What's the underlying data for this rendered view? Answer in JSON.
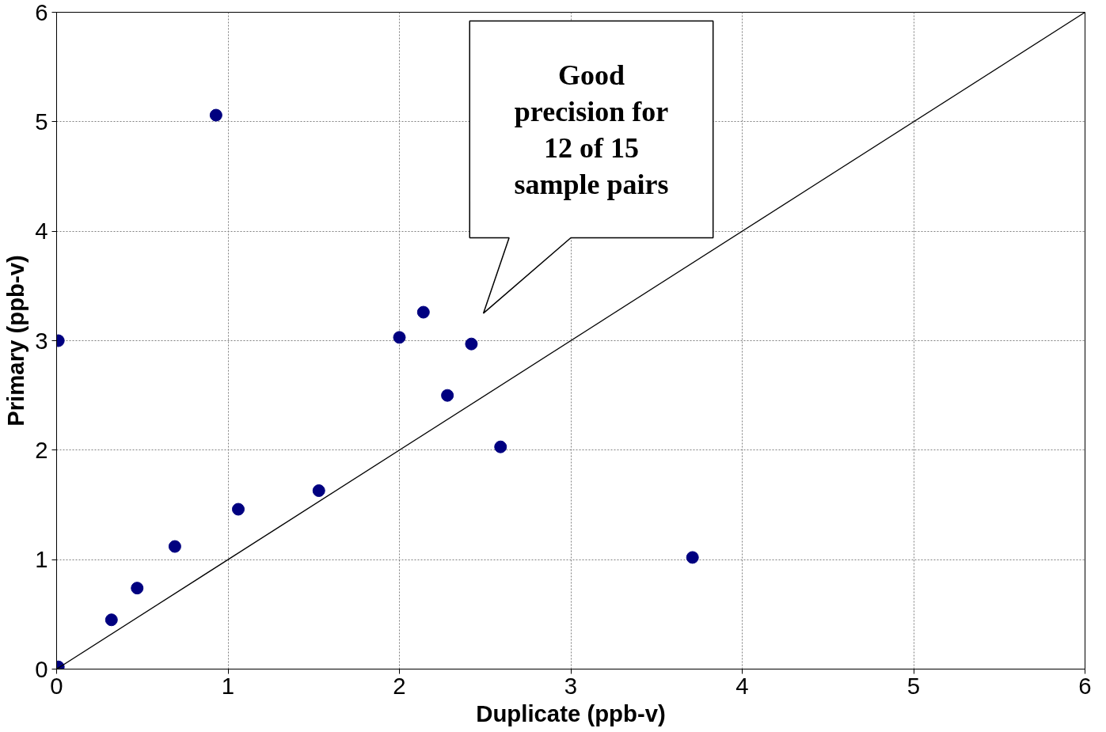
{
  "chart_data": {
    "type": "scatter",
    "xlabel": "Duplicate (ppb-v)",
    "ylabel": "Primary (ppb-v)",
    "xlim": [
      0,
      6
    ],
    "ylim": [
      0,
      6
    ],
    "xticks": [
      0,
      1,
      2,
      3,
      4,
      5,
      6
    ],
    "yticks": [
      0,
      1,
      2,
      3,
      4,
      5,
      6
    ],
    "grid": true,
    "series": [
      {
        "marker": "circle",
        "color": "#000080",
        "x": [
          0.01,
          0.01,
          0.32,
          0.47,
          0.69,
          0.93,
          1.06,
          1.53,
          2.0,
          2.14,
          2.28,
          2.42,
          2.59,
          3.71
        ],
        "values": [
          0.02,
          3.0,
          0.45,
          0.74,
          1.12,
          5.06,
          1.46,
          1.63,
          3.03,
          3.26,
          2.5,
          2.97,
          2.03,
          1.02
        ]
      },
      {
        "type": "line",
        "color": "#000000",
        "x": [
          0,
          6
        ],
        "values": [
          0,
          6
        ]
      }
    ],
    "annotations": [
      "Good\nprecision for\n12 of 15\nsample pairs"
    ]
  }
}
